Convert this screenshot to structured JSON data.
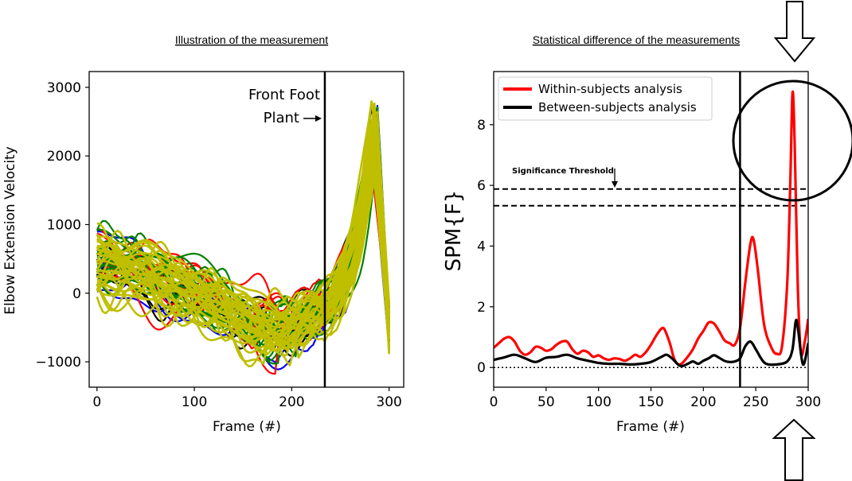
{
  "colors": {
    "red": "#ff0000",
    "black": "#000000",
    "blue": "#0000ff",
    "green": "#008000",
    "olive": "#bfbf00"
  },
  "chart_data": [
    {
      "type": "line",
      "title": "Illustration of the measurement",
      "xlabel": "Frame (#)",
      "ylabel": "Elbow Extension Velocity",
      "xlim": [
        -8,
        315
      ],
      "ylim": [
        -1370,
        3230
      ],
      "xticks": [
        0,
        100,
        200,
        300
      ],
      "yticks": [
        -1000,
        0,
        1000,
        2000,
        3000
      ],
      "xtick_labels": [
        "0",
        "100",
        "200",
        "300"
      ],
      "ytick_labels": [
        "−1000",
        "0",
        "1000",
        "2000",
        "3000"
      ],
      "vline_x": 234,
      "annotation_line1": "Front Foot",
      "annotation_line2": "Plant",
      "series_colors": [
        "red",
        "black",
        "blue",
        "green",
        "olive"
      ]
    },
    {
      "type": "line",
      "title": "Statistical difference of the measurements",
      "xlabel": "Frame (#)",
      "ylabel": "SPM{F}",
      "xlim": [
        0,
        300
      ],
      "ylim": [
        -0.65,
        9.75
      ],
      "xticks": [
        0,
        50,
        100,
        150,
        200,
        250,
        300
      ],
      "yticks": [
        0,
        2,
        4,
        6,
        8
      ],
      "xtick_labels": [
        "0",
        "50",
        "100",
        "150",
        "200",
        "250",
        "300"
      ],
      "ytick_labels": [
        "0",
        "2",
        "4",
        "6",
        "8"
      ],
      "vline_x": 235,
      "thresholds": [
        5.88,
        5.33
      ],
      "threshold_label": "Significance Threshold",
      "series": [
        {
          "name": "Within-subjects analysis",
          "color": "red",
          "x": [
            0,
            5,
            10,
            15,
            20,
            25,
            30,
            35,
            40,
            45,
            50,
            55,
            60,
            65,
            70,
            75,
            80,
            85,
            90,
            95,
            100,
            105,
            110,
            115,
            120,
            125,
            130,
            135,
            140,
            145,
            150,
            155,
            160,
            163,
            168,
            172,
            176,
            180,
            185,
            190,
            195,
            200,
            205,
            210,
            215,
            220,
            225,
            230,
            235,
            240,
            245,
            248,
            252,
            258,
            265,
            270,
            275,
            280,
            283,
            285,
            287,
            290,
            293,
            297,
            300
          ],
          "y": [
            0.65,
            0.8,
            0.95,
            1.0,
            0.85,
            0.55,
            0.42,
            0.5,
            0.68,
            0.65,
            0.55,
            0.6,
            0.75,
            0.85,
            0.85,
            0.6,
            0.45,
            0.55,
            0.5,
            0.35,
            0.4,
            0.3,
            0.25,
            0.3,
            0.28,
            0.22,
            0.3,
            0.42,
            0.35,
            0.5,
            0.75,
            1.05,
            1.28,
            1.25,
            0.8,
            0.3,
            0.1,
            0.15,
            0.35,
            0.6,
            0.95,
            1.2,
            1.48,
            1.45,
            1.2,
            0.9,
            0.8,
            0.75,
            1.3,
            2.8,
            4.1,
            4.2,
            3.2,
            1.4,
            0.65,
            0.45,
            0.7,
            2.8,
            6.2,
            9.05,
            7.5,
            2.8,
            0.5,
            0.9,
            1.6
          ]
        },
        {
          "name": "Between-subjects analysis",
          "color": "black",
          "x": [
            0,
            10,
            20,
            30,
            40,
            50,
            60,
            70,
            80,
            90,
            100,
            110,
            120,
            130,
            140,
            150,
            160,
            165,
            170,
            178,
            185,
            190,
            195,
            200,
            205,
            210,
            215,
            220,
            225,
            230,
            235,
            240,
            245,
            250,
            255,
            260,
            270,
            280,
            285,
            288,
            290,
            295,
            300
          ],
          "y": [
            0.25,
            0.33,
            0.42,
            0.3,
            0.18,
            0.32,
            0.35,
            0.42,
            0.3,
            0.22,
            0.15,
            0.12,
            0.12,
            0.1,
            0.12,
            0.18,
            0.35,
            0.42,
            0.3,
            0.05,
            0.12,
            0.2,
            0.12,
            0.22,
            0.3,
            0.4,
            0.32,
            0.22,
            0.18,
            0.2,
            0.3,
            0.7,
            0.85,
            0.6,
            0.3,
            0.12,
            0.1,
            0.2,
            0.6,
            1.5,
            1.35,
            0.1,
            0.8
          ]
        }
      ]
    }
  ]
}
